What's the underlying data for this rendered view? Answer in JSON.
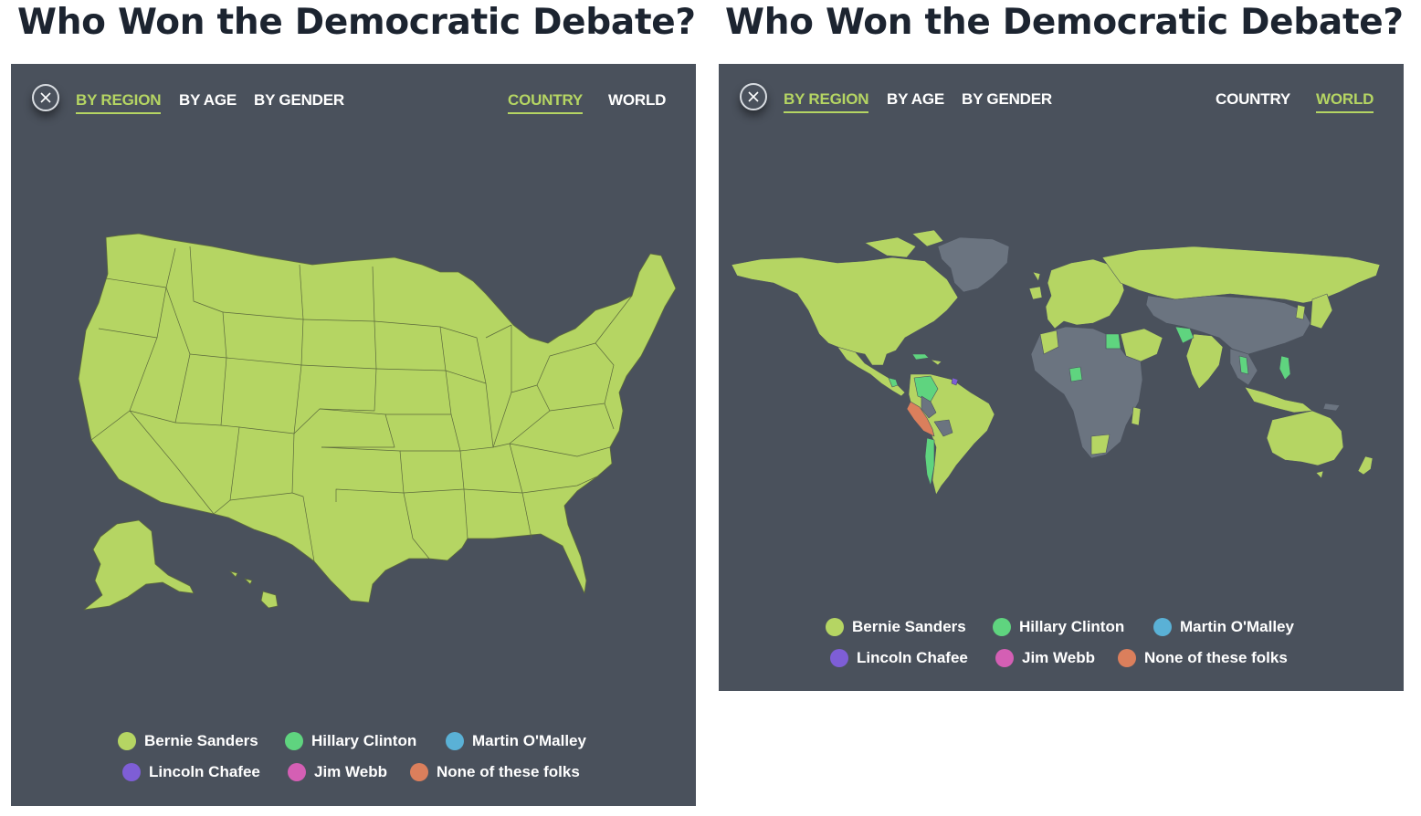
{
  "panels": [
    {
      "title": "Who Won the Democratic Debate?",
      "tabs": {
        "by_region": "BY REGION",
        "by_age": "BY AGE",
        "by_gender": "BY GENDER",
        "country": "COUNTRY",
        "world": "WORLD"
      },
      "active_tabs": [
        "BY REGION",
        "COUNTRY"
      ],
      "map": "United States by state",
      "legend": [
        "Bernie Sanders",
        "Hillary Clinton",
        "Martin O'Malley",
        "Lincoln Chafee",
        "Jim Webb",
        "None of these folks"
      ]
    },
    {
      "title": "Who Won the Democratic Debate?",
      "tabs": {
        "by_region": "BY REGION",
        "by_age": "BY AGE",
        "by_gender": "BY GENDER",
        "country": "COUNTRY",
        "world": "WORLD"
      },
      "active_tabs": [
        "BY REGION",
        "WORLD"
      ],
      "map": "World by country",
      "legend": [
        "Bernie Sanders",
        "Hillary Clinton",
        "Martin O'Malley",
        "Lincoln Chafee",
        "Jim Webb",
        "None of these folks"
      ]
    }
  ],
  "colors": {
    "panel_bg": "#4a515c",
    "bernie_sanders": "#b5d563",
    "hillary_clinton": "#5fd47f",
    "martin_omalley": "#5ab1d6",
    "lincoln_chafee": "#7e5ed6",
    "jim_webb": "#d45fb4",
    "none_of_these_folks": "#db7f5c",
    "no_data": "#6b7480",
    "title": "#1c2430"
  }
}
